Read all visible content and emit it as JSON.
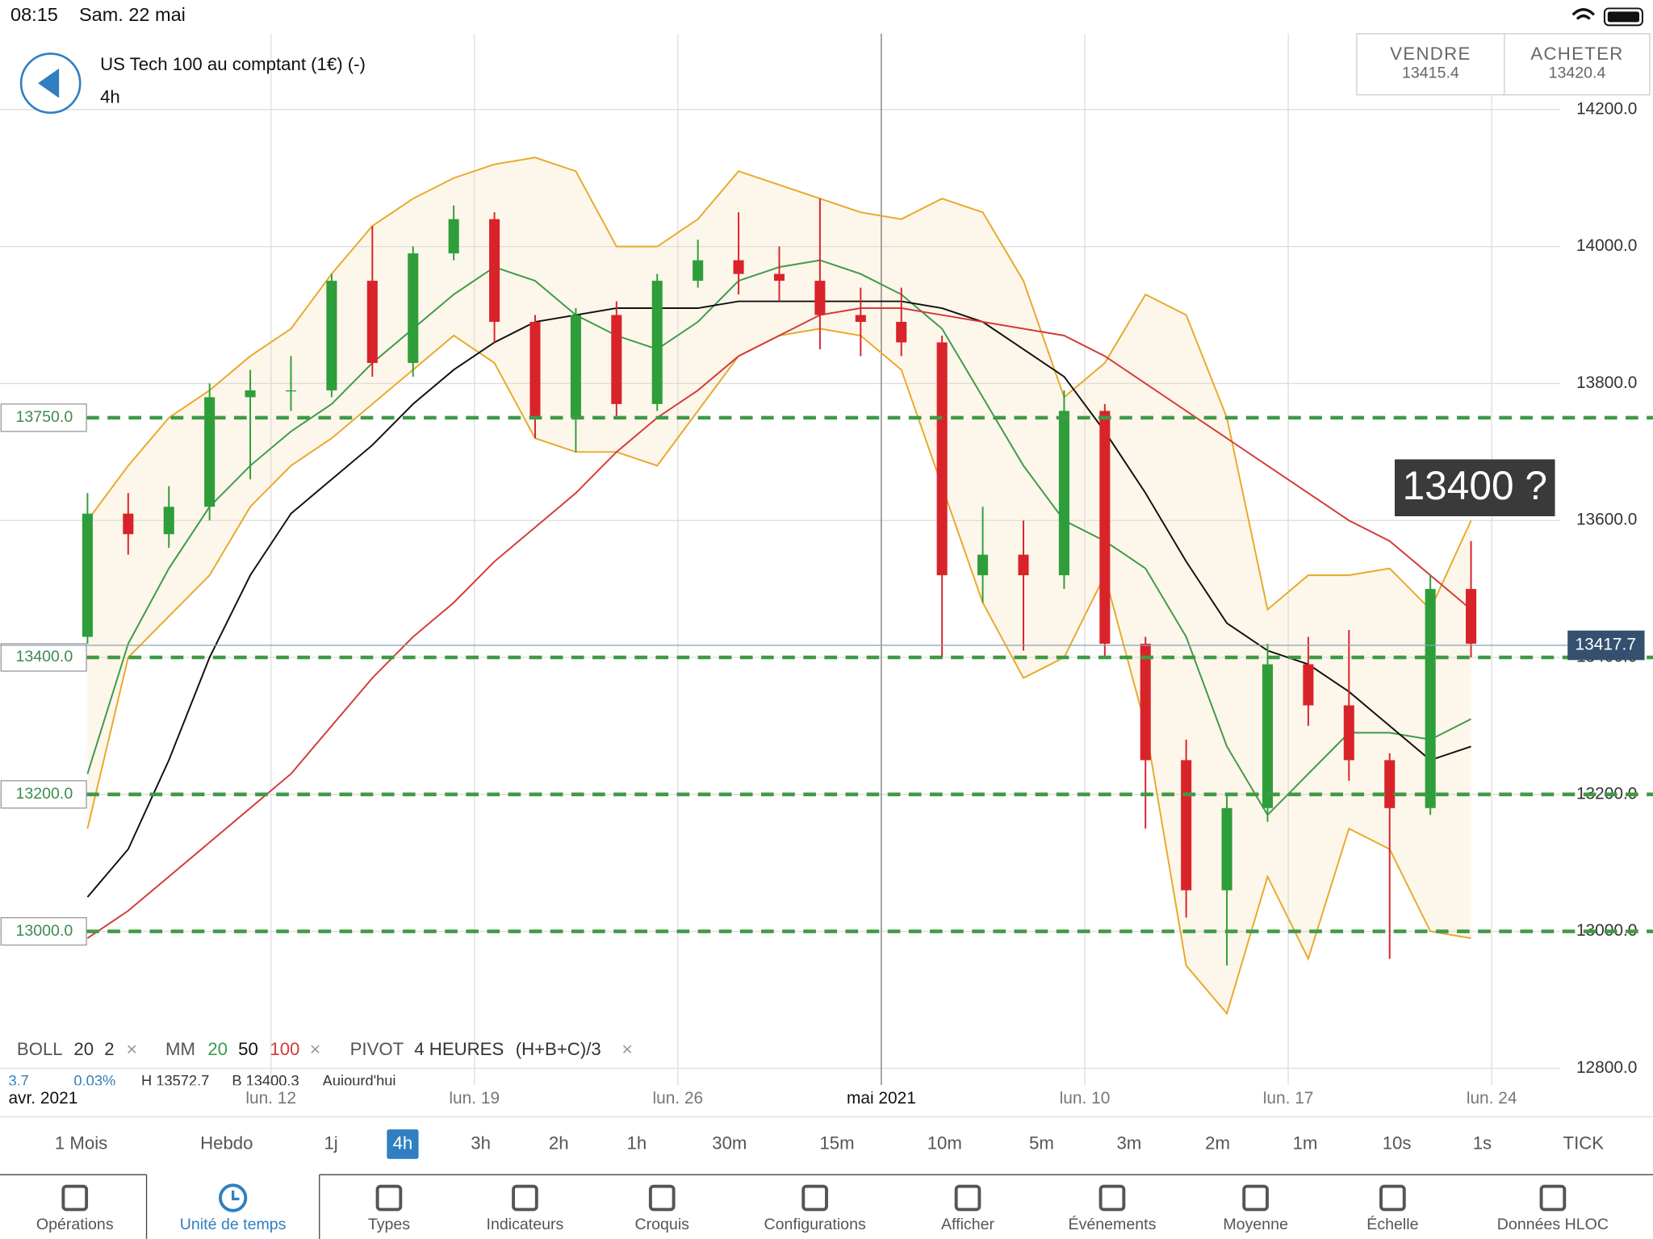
{
  "status_bar": {
    "time": "08:15",
    "date": "Sam. 22 mai"
  },
  "header": {
    "instrument": "US Tech 100 au comptant (1€) (-)",
    "timeframe": "4h"
  },
  "quotes": [
    {
      "label": "VENDRE",
      "value": "13415.4"
    },
    {
      "label": "ACHETER",
      "value": "13420.4"
    }
  ],
  "chart_data": {
    "type": "candlestick",
    "categories": [
      "avr. 2021",
      null,
      null,
      null,
      null,
      "lun. 12",
      null,
      null,
      null,
      null,
      "lun. 19",
      null,
      null,
      null,
      null,
      "lun. 26",
      null,
      null,
      null,
      null,
      "mai 2021",
      null,
      null,
      null,
      null,
      "lun. 10",
      null,
      null,
      null,
      null,
      "lun. 17",
      null,
      null,
      null,
      null,
      "lun. 24"
    ],
    "open": [
      13430,
      13610,
      13580,
      13620,
      13780,
      13790,
      13790,
      13950,
      13830,
      13990,
      14040,
      13890,
      13750,
      13900,
      13770,
      13950,
      13980,
      13960,
      13950,
      13900,
      13890,
      13860,
      13520,
      13550,
      13520,
      13760,
      13420,
      13250,
      13060,
      13180,
      13390,
      13330,
      13250,
      13180,
      13500,
      null
    ],
    "high": [
      13640,
      13640,
      13650,
      13800,
      13820,
      13840,
      13960,
      14030,
      14000,
      14060,
      14050,
      13900,
      13910,
      13920,
      13960,
      14010,
      14050,
      14000,
      14070,
      13940,
      13940,
      13870,
      13620,
      13600,
      13790,
      13770,
      13430,
      13280,
      13200,
      13420,
      13430,
      13440,
      13260,
      13520,
      13570,
      null
    ],
    "low": [
      13420,
      13550,
      13560,
      13600,
      13660,
      13760,
      13780,
      13810,
      13810,
      13980,
      13860,
      13720,
      13700,
      13750,
      13760,
      13940,
      13930,
      13920,
      13850,
      13840,
      13840,
      13400,
      13480,
      13410,
      13500,
      13400,
      13150,
      13020,
      12950,
      13160,
      13300,
      13220,
      12960,
      13170,
      13400,
      null
    ],
    "close": [
      13610,
      13580,
      13620,
      13780,
      13790,
      13790,
      13950,
      13830,
      13990,
      14040,
      13890,
      13750,
      13900,
      13770,
      13950,
      13980,
      13960,
      13950,
      13900,
      13890,
      13860,
      13520,
      13550,
      13520,
      13760,
      13420,
      13250,
      13060,
      13180,
      13390,
      13330,
      13250,
      13180,
      13500,
      13420,
      null
    ],
    "up_color": "#2e9e3a",
    "down_color": "#d9232a",
    "bollinger": {
      "color": "#e8a92a",
      "fill": "#fdf6ea",
      "upper": [
        13600,
        13680,
        13750,
        13790,
        13840,
        13880,
        13960,
        14030,
        14070,
        14100,
        14120,
        14130,
        14110,
        14000,
        14000,
        14040,
        14110,
        14090,
        14070,
        14050,
        14040,
        14070,
        14050,
        13950,
        13780,
        13830,
        13930,
        13900,
        13750,
        13470,
        13520,
        13520,
        13530,
        13470,
        13600,
        null
      ],
      "lower": [
        13150,
        13400,
        13460,
        13520,
        13620,
        13680,
        13720,
        13770,
        13820,
        13870,
        13830,
        13720,
        13700,
        13700,
        13680,
        13760,
        13840,
        13870,
        13880,
        13870,
        13820,
        13650,
        13480,
        13370,
        13400,
        13520,
        13300,
        12950,
        12880,
        13080,
        12960,
        13150,
        13120,
        13000,
        12990,
        null
      ]
    },
    "moving_averages": [
      {
        "color": "#3c9a4a",
        "values": [
          13230,
          13420,
          13530,
          13620,
          13680,
          13730,
          13770,
          13830,
          13880,
          13930,
          13970,
          13950,
          13900,
          13870,
          13850,
          13890,
          13950,
          13970,
          13980,
          13960,
          13930,
          13880,
          13780,
          13680,
          13600,
          13570,
          13530,
          13430,
          13270,
          13170,
          13230,
          13290,
          13290,
          13280,
          13310,
          null
        ]
      },
      {
        "color": "#111111",
        "values": [
          13050,
          13120,
          13250,
          13400,
          13520,
          13610,
          13660,
          13710,
          13770,
          13820,
          13860,
          13890,
          13900,
          13910,
          13910,
          13910,
          13920,
          13920,
          13920,
          13920,
          13920,
          13910,
          13890,
          13850,
          13810,
          13730,
          13640,
          13540,
          13450,
          13410,
          13390,
          13350,
          13300,
          13250,
          13270,
          null
        ]
      },
      {
        "color": "#d43a3a",
        "values": [
          12990,
          13030,
          13080,
          13130,
          13180,
          13230,
          13300,
          13370,
          13430,
          13480,
          13540,
          13590,
          13640,
          13700,
          13750,
          13790,
          13840,
          13870,
          13900,
          13910,
          13910,
          13900,
          13890,
          13880,
          13870,
          13840,
          13800,
          13760,
          13720,
          13680,
          13640,
          13600,
          13570,
          13520,
          13470,
          null
        ]
      }
    ],
    "ylim": [
      12800,
      14200
    ],
    "yticks": [
      {
        "value": 12800,
        "label": "12800.0"
      },
      {
        "value": 13000,
        "label": "13000.0"
      },
      {
        "value": 13200,
        "label": "13200.0"
      },
      {
        "value": 13400,
        "label": "13400.0"
      },
      {
        "value": 13600,
        "label": "13600.0"
      },
      {
        "value": 13800,
        "label": "13800.0"
      },
      {
        "value": 14000,
        "label": "14000.0"
      },
      {
        "value": 14200,
        "label": "14200.0"
      }
    ],
    "grid": true,
    "levels": [
      {
        "value": 13750,
        "label": "13750.0"
      },
      {
        "value": 13400,
        "label": "13400.0"
      },
      {
        "value": 13200,
        "label": "13200.0"
      },
      {
        "value": 13000,
        "label": "13000.0"
      }
    ],
    "level_color": "#3f9a46",
    "last_price": 13417.7,
    "annotation": "13400 ?"
  },
  "indicators": [
    {
      "text": "BOLL",
      "color": "#555"
    },
    {
      "text": "20",
      "color": "#333"
    },
    {
      "text": "2",
      "color": "#333"
    },
    {
      "text": "MM",
      "color": "#555"
    },
    {
      "text": "20",
      "color": "#3c9a4a"
    },
    {
      "text": "50",
      "color": "#111"
    },
    {
      "text": "100",
      "color": "#d43a3a"
    },
    {
      "text": "PIVOT",
      "color": "#555"
    },
    {
      "text": "4 HEURES",
      "color": "#333"
    },
    {
      "text": "(H+B+C)/3",
      "color": "#333"
    }
  ],
  "info_row": [
    "3.7",
    "0.03%",
    "H 13572.7",
    "B 13400.3",
    "Aujourd'hui"
  ],
  "timeframes": {
    "items": [
      "1 Mois",
      "Hebdo",
      "1j",
      "4h",
      "3h",
      "2h",
      "1h",
      "30m",
      "15m",
      "10m",
      "5m",
      "3m",
      "2m",
      "1m",
      "10s",
      "1s",
      "TICK"
    ],
    "selected": "4h"
  },
  "toolbar": {
    "items": [
      "Opérations",
      "Unité de temps",
      "Types",
      "Indicateurs",
      "Croquis",
      "Configurations",
      "Afficher",
      "Événements",
      "Moyenne",
      "Échelle",
      "Données HLOC"
    ],
    "selected": "Unité de temps"
  }
}
